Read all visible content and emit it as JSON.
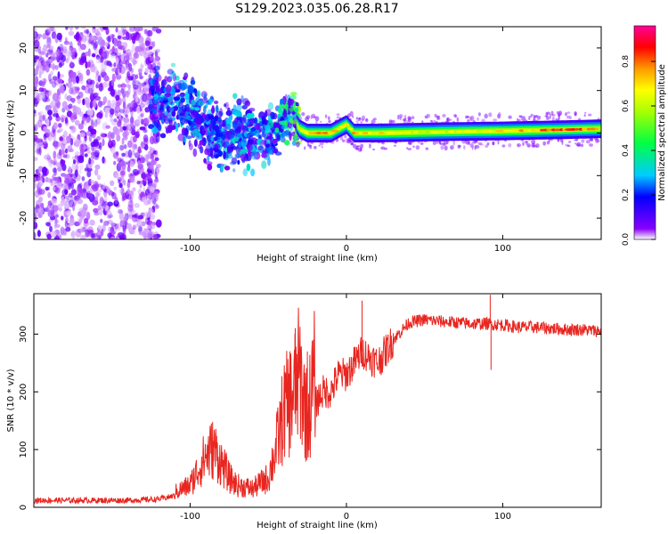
{
  "title": "S129.2023.035.06.28.R17",
  "chart_data": [
    {
      "type": "heatmap",
      "xlabel": "Height of straight line (km)",
      "ylabel": "Frequency (Hz)",
      "xlim": [
        -200,
        163
      ],
      "ylim": [
        -25,
        25
      ],
      "xticks": [
        -100,
        0,
        100
      ],
      "yticks": [
        -20,
        -10,
        0,
        10,
        20
      ],
      "colorbar": {
        "label": "Normalized spectral amplitude",
        "range": [
          0,
          0.96
        ],
        "ticks": [
          "0.0",
          "0.2",
          "0.4",
          "0.6",
          "0.8"
        ]
      },
      "band": {
        "description_values": "dominant frequency ridge",
        "x": [
          -200,
          -125,
          -110,
          -100,
          -90,
          -80,
          -70,
          -60,
          -50,
          -40,
          -35,
          -30,
          -25,
          -10,
          -5,
          0,
          5,
          20,
          60,
          100,
          140,
          163
        ],
        "center_hz": [
          null,
          8,
          7,
          4,
          1,
          -1,
          0,
          -1,
          -1,
          3,
          4,
          1,
          0,
          0,
          1,
          2,
          0,
          0,
          0.3,
          0.5,
          0.8,
          1.0
        ],
        "peak_amplitude": [
          0.15,
          0.25,
          0.3,
          0.3,
          0.28,
          0.3,
          0.3,
          0.3,
          0.3,
          0.45,
          0.5,
          0.6,
          0.75,
          0.8,
          0.7,
          0.75,
          0.75,
          0.7,
          0.65,
          0.7,
          0.85,
          0.8
        ]
      }
    },
    {
      "type": "line",
      "xlabel": "Height of straight line (km)",
      "ylabel": "SNR (10 * v/v)",
      "xlim": [
        -200,
        163
      ],
      "ylim": [
        0,
        370
      ],
      "xticks": [
        -100,
        0,
        100
      ],
      "yticks": [
        0,
        100,
        200,
        300
      ],
      "color": "#e8251f",
      "series": [
        {
          "x": [
            -200,
            -180,
            -160,
            -140,
            -120,
            -110,
            -100,
            -95,
            -90,
            -85,
            -80,
            -75,
            -70,
            -60,
            -50,
            -45,
            -40,
            -35,
            -30,
            -25,
            -20,
            -15,
            -10,
            -5,
            0,
            5,
            10,
            15,
            20,
            25,
            30,
            40,
            50,
            60,
            70,
            80,
            90,
            100,
            110,
            120,
            130,
            140,
            150,
            163
          ],
          "values": [
            12,
            12,
            12,
            12,
            14,
            20,
            30,
            50,
            70,
            80,
            60,
            40,
            30,
            25,
            40,
            80,
            130,
            150,
            180,
            120,
            180,
            200,
            200,
            230,
            230,
            250,
            270,
            260,
            250,
            270,
            290,
            320,
            325,
            322,
            320,
            318,
            318,
            316,
            312,
            312,
            310,
            308,
            308,
            305
          ],
          "spikes": [
            {
              "x": -85,
              "value": 115
            },
            {
              "x": -33,
              "value": 300
            },
            {
              "x": -25,
              "value": 270
            },
            {
              "x": 10,
              "value": 358
            },
            {
              "x": 92,
              "value": 368
            },
            {
              "x": 92.5,
              "value": 238
            }
          ]
        }
      ]
    }
  ]
}
